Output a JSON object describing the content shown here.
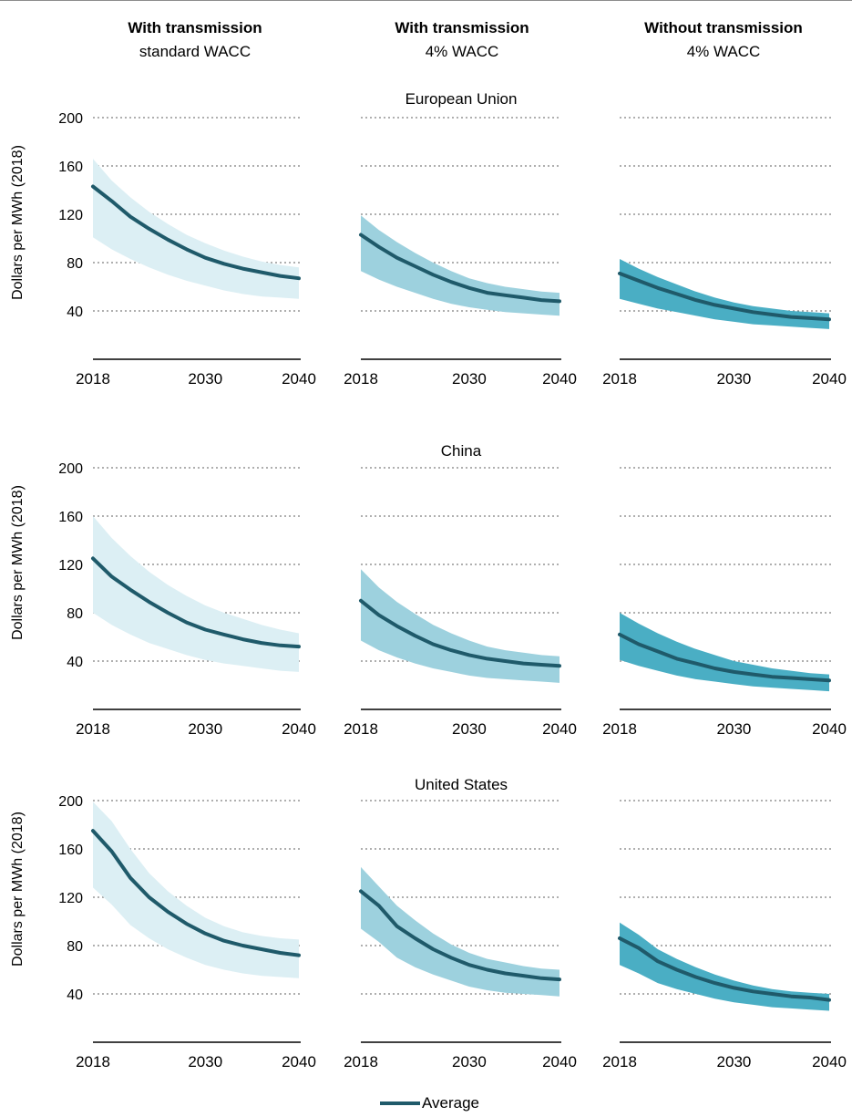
{
  "columns": [
    {
      "title": "With transmission",
      "subtitle": "standard WACC"
    },
    {
      "title": "With transmission",
      "subtitle": "4% WACC"
    },
    {
      "title": "Without transmission",
      "subtitle": "4% WACC"
    }
  ],
  "ylabel": "Dollars per MWh (2018)",
  "legend": {
    "label": "Average"
  },
  "colors": {
    "line": "#1f5a6a",
    "band": [
      "#dceff4",
      "#9dd1de",
      "#4aaec4"
    ],
    "grid": "#7f7f7f",
    "axis": "#000000"
  },
  "chart_data": [
    {
      "type": "area",
      "region": "European Union",
      "x_ticks": [
        "2018",
        "2030",
        "2040"
      ],
      "xlim": [
        2018,
        2040
      ],
      "y_ticks": [
        40,
        80,
        120,
        160,
        200
      ],
      "ylim": [
        0,
        200
      ],
      "grid": true,
      "x": [
        2018,
        2020,
        2022,
        2024,
        2026,
        2028,
        2030,
        2032,
        2034,
        2036,
        2038,
        2040
      ],
      "panels": [
        {
          "column": 0,
          "average": [
            143,
            131,
            118,
            108,
            99,
            91,
            84,
            79,
            75,
            72,
            69,
            67
          ],
          "high": [
            166,
            148,
            134,
            122,
            112,
            103,
            96,
            90,
            85,
            81,
            78,
            76
          ],
          "low": [
            101,
            91,
            83,
            76,
            70,
            65,
            61,
            57,
            54,
            52,
            51,
            50
          ]
        },
        {
          "column": 1,
          "average": [
            103,
            93,
            84,
            77,
            70,
            64,
            59,
            55,
            53,
            51,
            49,
            48
          ],
          "high": [
            119,
            107,
            97,
            88,
            80,
            73,
            67,
            63,
            60,
            58,
            56,
            55
          ],
          "low": [
            73,
            66,
            60,
            55,
            50,
            46,
            43,
            41,
            39,
            38,
            37,
            36
          ]
        },
        {
          "column": 2,
          "average": [
            71,
            65,
            59,
            54,
            49,
            45,
            42,
            39,
            37,
            35,
            34,
            33
          ],
          "high": [
            83,
            75,
            68,
            62,
            56,
            51,
            47,
            44,
            42,
            40,
            39,
            38
          ],
          "low": [
            50,
            46,
            42,
            39,
            36,
            33,
            31,
            29,
            28,
            27,
            26,
            25
          ]
        }
      ]
    },
    {
      "type": "area",
      "region": "China",
      "x_ticks": [
        "2018",
        "2030",
        "2040"
      ],
      "xlim": [
        2018,
        2040
      ],
      "y_ticks": [
        40,
        80,
        120,
        160,
        200
      ],
      "ylim": [
        0,
        200
      ],
      "grid": true,
      "x": [
        2018,
        2020,
        2022,
        2024,
        2026,
        2028,
        2030,
        2032,
        2034,
        2036,
        2038,
        2040
      ],
      "panels": [
        {
          "column": 0,
          "average": [
            125,
            110,
            99,
            89,
            80,
            72,
            66,
            62,
            58,
            55,
            53,
            52
          ],
          "high": [
            160,
            142,
            127,
            114,
            103,
            94,
            86,
            80,
            75,
            70,
            66,
            63
          ],
          "low": [
            80,
            70,
            62,
            55,
            50,
            45,
            41,
            38,
            36,
            34,
            32,
            31
          ]
        },
        {
          "column": 1,
          "average": [
            90,
            78,
            69,
            61,
            54,
            49,
            45,
            42,
            40,
            38,
            37,
            36
          ],
          "high": [
            116,
            101,
            89,
            79,
            70,
            63,
            57,
            52,
            49,
            47,
            45,
            44
          ],
          "low": [
            57,
            49,
            43,
            38,
            34,
            31,
            28,
            26,
            25,
            24,
            23,
            22
          ]
        },
        {
          "column": 2,
          "average": [
            62,
            54,
            48,
            42,
            38,
            34,
            31,
            29,
            27,
            26,
            25,
            24
          ],
          "high": [
            80,
            71,
            63,
            56,
            50,
            45,
            40,
            37,
            34,
            32,
            30,
            29
          ],
          "low": [
            41,
            36,
            32,
            28,
            25,
            23,
            21,
            19,
            18,
            17,
            16,
            15
          ]
        }
      ]
    },
    {
      "type": "area",
      "region": "United States",
      "x_ticks": [
        "2018",
        "2030",
        "2040"
      ],
      "xlim": [
        2018,
        2040
      ],
      "y_ticks": [
        40,
        80,
        120,
        160,
        200
      ],
      "ylim": [
        0,
        200
      ],
      "grid": true,
      "x": [
        2018,
        2020,
        2022,
        2024,
        2026,
        2028,
        2030,
        2032,
        2034,
        2036,
        2038,
        2040
      ],
      "panels": [
        {
          "column": 0,
          "average": [
            175,
            158,
            136,
            120,
            108,
            98,
            90,
            84,
            80,
            77,
            74,
            72
          ],
          "high": [
            199,
            183,
            160,
            140,
            125,
            113,
            103,
            96,
            91,
            88,
            86,
            85
          ],
          "low": [
            128,
            114,
            97,
            86,
            77,
            70,
            64,
            60,
            57,
            55,
            54,
            53
          ]
        },
        {
          "column": 1,
          "average": [
            125,
            113,
            96,
            86,
            77,
            70,
            64,
            60,
            57,
            55,
            53,
            52
          ],
          "high": [
            145,
            129,
            113,
            101,
            90,
            81,
            74,
            69,
            66,
            63,
            61,
            60
          ],
          "low": [
            94,
            83,
            70,
            62,
            56,
            51,
            46,
            43,
            41,
            40,
            39,
            38
          ]
        },
        {
          "column": 2,
          "average": [
            86,
            78,
            67,
            60,
            54,
            49,
            45,
            42,
            40,
            38,
            37,
            35
          ],
          "high": [
            99,
            89,
            77,
            69,
            62,
            56,
            51,
            47,
            44,
            42,
            41,
            40
          ],
          "low": [
            64,
            57,
            49,
            44,
            40,
            36,
            33,
            31,
            29,
            28,
            27,
            26
          ]
        }
      ]
    }
  ]
}
